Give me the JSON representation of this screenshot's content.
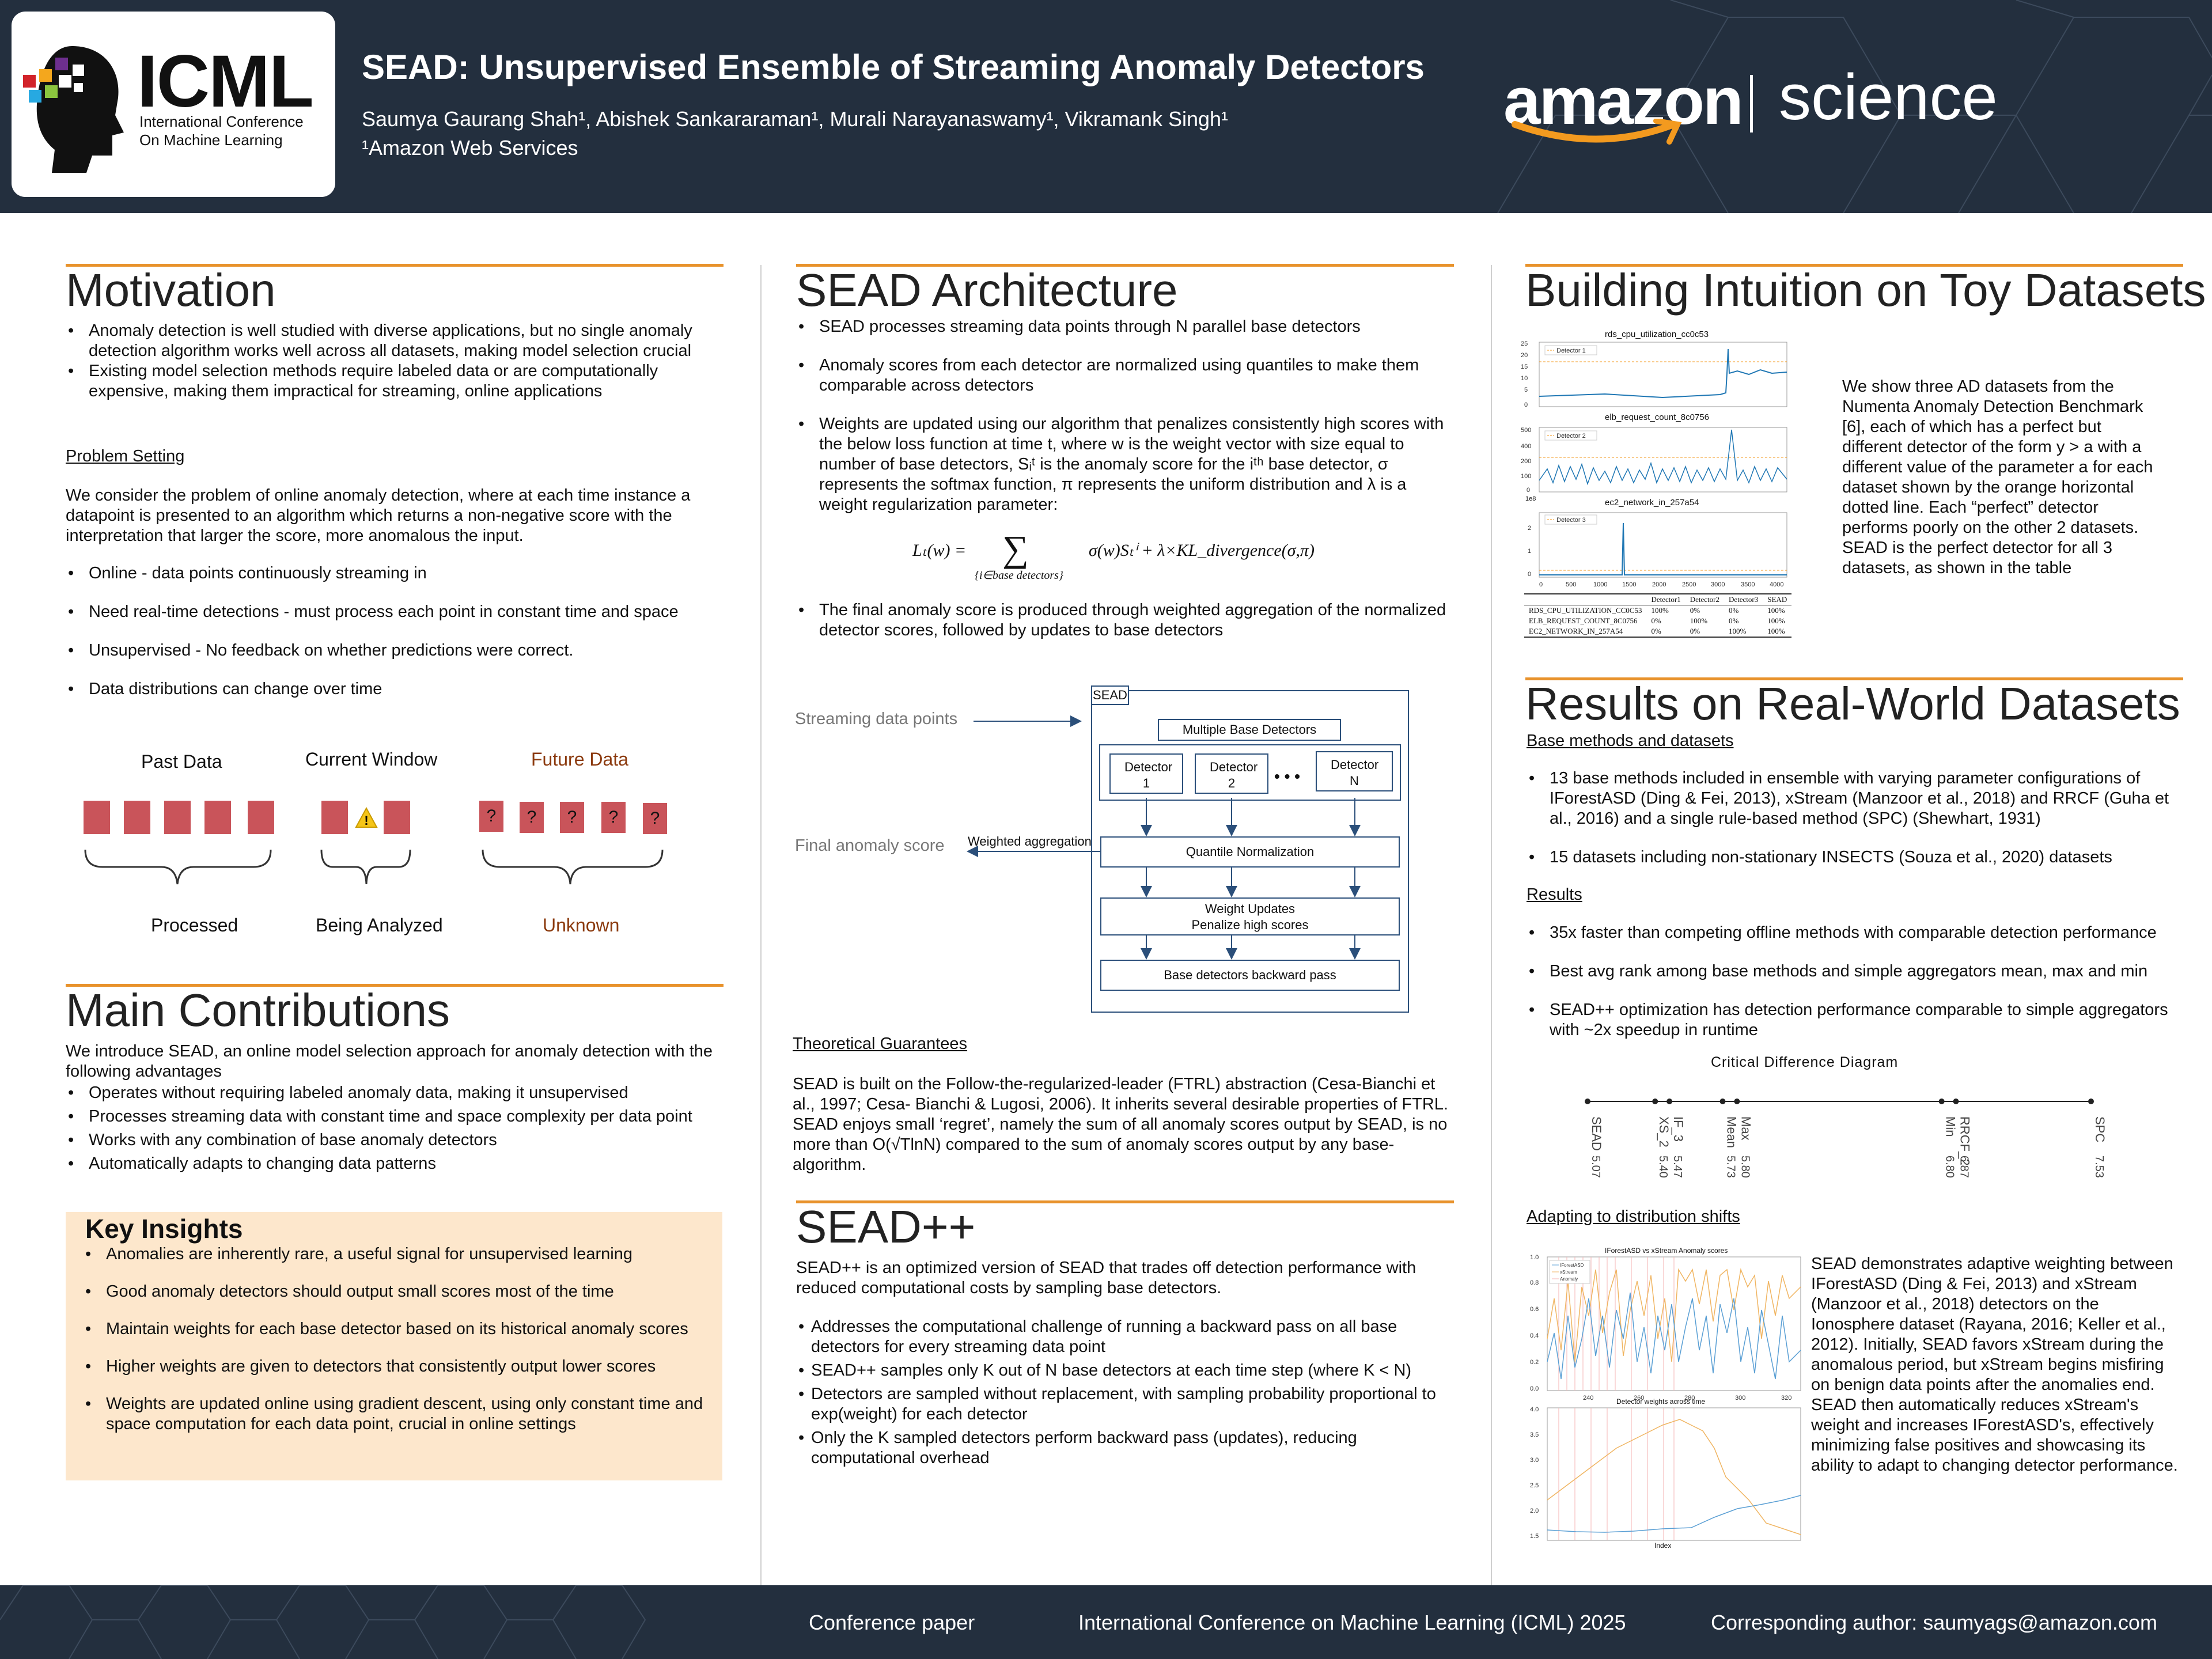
{
  "header": {
    "logo": {
      "word": "ICML",
      "sub1": "International Conference",
      "sub2": "On Machine Learning"
    },
    "title": "SEAD: Unsupervised Ensemble of Streaming Anomaly Detectors",
    "authors": "Saumya Gaurang Shah¹, Abishek Sankararaman¹, Murali Narayanaswamy¹, Vikramank Singh¹",
    "affiliation": "¹Amazon Web Services",
    "brand_left": "amazon",
    "brand_right": "science"
  },
  "motivation": {
    "heading": "Motivation",
    "bullets": [
      "Anomaly detection is well studied with diverse applications, but no single anomaly detection algorithm works well across all datasets, making model selection crucial",
      "Existing model selection methods require labeled data or are computationally expensive, making them impractical for streaming, online applications"
    ],
    "problem_heading": "Problem Setting",
    "problem_text": "We consider the problem of online anomaly detection, where at each time instance a datapoint is presented to an algorithm which returns a non-negative score with the interpretation that larger the score, more anomalous the input.",
    "problem_bullets": [
      "Online - data points continuously streaming in",
      "Need real-time detections - must process each point in constant time and space",
      "Unsupervised - No feedback on whether predictions were correct.",
      "Data distributions can change over time"
    ],
    "timeline": {
      "past_label": "Past Data",
      "current_label": "Current Window",
      "future_label": "Future Data",
      "processed": "Processed",
      "analyzing": "Being Analyzed",
      "unknown": "Unknown",
      "question": "?",
      "warning": "!"
    }
  },
  "contributions": {
    "heading": "Main Contributions",
    "intro": "We introduce SEAD, an online model selection approach for anomaly detection with the following advantages",
    "bullets": [
      "Operates without requiring labeled anomaly data, making it unsupervised",
      "Processes streaming data with constant time and space complexity per data point",
      "Works with any combination of base anomaly detectors",
      "Automatically adapts to changing data patterns"
    ]
  },
  "insights": {
    "heading": "Key Insights",
    "bullets": [
      "Anomalies are inherently rare, a useful signal for unsupervised learning",
      "Good anomaly detectors should output small scores most of the time",
      "Maintain weights for each base detector based on its historical anomaly scores",
      "Higher weights are given to detectors that consistently output lower scores",
      "Weights are updated online using gradient descent, using only constant time and space computation for each data point, crucial in online settings"
    ]
  },
  "architecture": {
    "heading": "SEAD Architecture",
    "bullets": [
      "SEAD processes streaming data points through N parallel base detectors",
      "Anomaly scores from each detector are normalized using quantiles to make them comparable across detectors",
      "Weights are updated using our algorithm that penalizes consistently high scores with the below loss function at time t, where w is the weight vector with size equal to number of base detectors, Sᵢᵗ is the anomaly score for the iᵗʰ base detector, σ represents the softmax function, π represents the uniform distribution and λ is a weight regularization parameter:",
      "The final anomaly score is produced through weighted aggregation of the normalized detector scores, followed by updates to base detectors"
    ],
    "equation_lhs": "Lₜ(w) =",
    "equation_sum": "∑",
    "equation_sub": "{i∈base detectors}",
    "equation_rhs": "σ(w)Sₜⁱ + λ×KL_divergence(σ,π)",
    "diagram": {
      "streaming": "Streaming data points",
      "final": "Final anomaly score",
      "weighted": "Weighted aggregation",
      "sead": "SEAD",
      "multiple": "Multiple Base Detectors",
      "det1": "Detector 1",
      "det2": "Detector 2",
      "detn": "Detector N",
      "dots": "• • •",
      "quantile": "Quantile Normalization",
      "weights1": "Weight Updates",
      "weights2": "Penalize high scores",
      "backward": "Base detectors backward pass"
    },
    "theory_heading": "Theoretical Guarantees",
    "theory_text": "SEAD is built on the Follow-the-regularized-leader (FTRL) abstraction (Cesa-Bianchi et al., 1997; Cesa- Bianchi & Lugosi, 2006). It inherits several desirable properties of FTRL. SEAD enjoys small ‘regret’, namely the sum of all anomaly scores output by SEAD, is no more than  O(√TlnN) compared to the sum of anomaly scores output by any base-algorithm."
  },
  "seadpp": {
    "heading": "SEAD++",
    "intro": "SEAD++ is an optimized version of SEAD that trades off detection performance with reduced computational costs by sampling base detectors.",
    "bullets": [
      "Addresses the computational challenge of running a backward pass on all base detectors for every streaming data point",
      "SEAD++  samples only K out of N base detectors at each time step (where K < N)",
      "Detectors are sampled without replacement, with sampling probability proportional to exp(weight) for each detector",
      "Only the K sampled detectors perform backward pass (updates), reducing computational overhead"
    ]
  },
  "toy": {
    "heading": "Building Intuition on Toy Datasets",
    "text": "We show three AD datasets from the Numenta Anomaly Detection Benchmark [6], each of which has a perfect but different detector of the form y > a with a different value of the parameter a for each dataset shown by the orange horizontal dotted line. Each “perfect” detector performs poorly on the other 2 datasets. SEAD is the perfect detector for all 3 datasets, as shown in the table",
    "plots": [
      {
        "title": "rds_cpu_utilization_cc0c53",
        "legend": "Detector 1",
        "yticks": [
          "25",
          "20",
          "15",
          "10",
          "5",
          "0"
        ]
      },
      {
        "title": "elb_request_count_8c0756",
        "legend": "Detector 2",
        "yticks": [
          "500",
          "400",
          "200",
          "100",
          "0"
        ]
      },
      {
        "title": "ec2_network_in_257a54",
        "legend": "Detector 3",
        "yticks": [
          "2",
          "1",
          "0"
        ],
        "scale": "1e8"
      }
    ],
    "xticks": [
      "0",
      "500",
      "1000",
      "1500",
      "2000",
      "2500",
      "3000",
      "3500",
      "4000"
    ],
    "table": {
      "headers": [
        "",
        "Detector1",
        "Detector2",
        "Detector3",
        "SEAD"
      ],
      "rows": [
        [
          "RDS_CPU_UTILIZATION_CC0C53",
          "100%",
          "0%",
          "0%",
          "100%"
        ],
        [
          "ELB_REQUEST_COUNT_8C0756",
          "0%",
          "100%",
          "0%",
          "100%"
        ],
        [
          "EC2_NETWORK_IN_257A54",
          "0%",
          "0%",
          "100%",
          "100%"
        ]
      ]
    }
  },
  "results": {
    "heading": "Results on Real-World Datasets",
    "base_heading": "Base methods and datasets",
    "base_bullets": [
      "13 base methods included in ensemble with varying parameter configurations of IForestASD (Ding & Fei, 2013), xStream (Manzoor et al., 2018) and RRCF (Guha et al., 2016) and a single rule-based method (SPC) (Shewhart, 1931)",
      "15 datasets including non-stationary INSECTS  (Souza et al., 2020) datasets"
    ],
    "results_heading": "Results",
    "results_bullets": [
      "35x faster than competing offline methods with comparable detection performance",
      "Best avg rank among base methods and simple aggregators mean, max and min",
      "SEAD++ optimization has detection performance comparable to simple aggregators with ~2x speedup in runtime"
    ],
    "cd_title": "Critical Difference Diagram",
    "adapt_heading": "Adapting to distribution shifts",
    "adapt_text": "SEAD demonstrates adaptive weighting between IForestASD (Ding & Fei, 2013) and xStream (Manzoor et al., 2018) detectors on the Ionosphere dataset (Rayana, 2016; Keller et al., 2012). Initially, SEAD favors xStream during the anomalous period, but xStream begins misfiring on benign data points after the anomalies end. SEAD then automatically reduces xStream's weight and increases IForestASD's, effectively minimizing false positives and showcasing its ability to adapt to changing detector performance.",
    "plot1_title": "IForestASD vs xStream Anomaly scores",
    "plot2_title": "Detector weights across time",
    "plot2_xlabel": "Index",
    "legend": [
      "IForestASD",
      "xStream",
      "Anomaly"
    ],
    "plot1_yticks": [
      "1.0",
      "0.8",
      "0.6",
      "0.4",
      "0.2",
      "0.0"
    ],
    "plot2_yticks": [
      "4.0",
      "3.5",
      "3.0",
      "2.5",
      "2.0",
      "1.5"
    ],
    "xticks": [
      "240",
      "260",
      "280",
      "300",
      "320"
    ]
  },
  "chart_data": {
    "type": "scatter",
    "title": "Critical Difference Diagram",
    "points": [
      {
        "name": "SEAD",
        "rank": 5.07
      },
      {
        "name": "XS_2",
        "rank": 5.4
      },
      {
        "name": "IF_3",
        "rank": 5.47
      },
      {
        "name": "Mean",
        "rank": 5.73
      },
      {
        "name": "Max",
        "rank": 5.8
      },
      {
        "name": "Min",
        "rank": 6.8
      },
      {
        "name": "RRCF_2",
        "rank": 6.87
      },
      {
        "name": "SPC",
        "rank": 7.53
      }
    ],
    "rank_labels": [
      "5.07",
      "5.40",
      "5.47",
      "5.73",
      "5.80",
      "6.80",
      "6.87",
      "7.53"
    ],
    "xlim": [
      5.07,
      7.53
    ],
    "colors": {
      "axis": "#222222"
    }
  },
  "footer": {
    "left": "Conference paper",
    "middle": "International Conference on Machine Learning (ICML) 2025",
    "right": "Corresponding author: saumyags@amazon.com"
  },
  "colors": {
    "header_bg": "#232f3e",
    "accent": "#e8922b",
    "block_red": "#c9545a",
    "box_bg": "#fde7cc",
    "future_text": "#8b3a0e"
  }
}
